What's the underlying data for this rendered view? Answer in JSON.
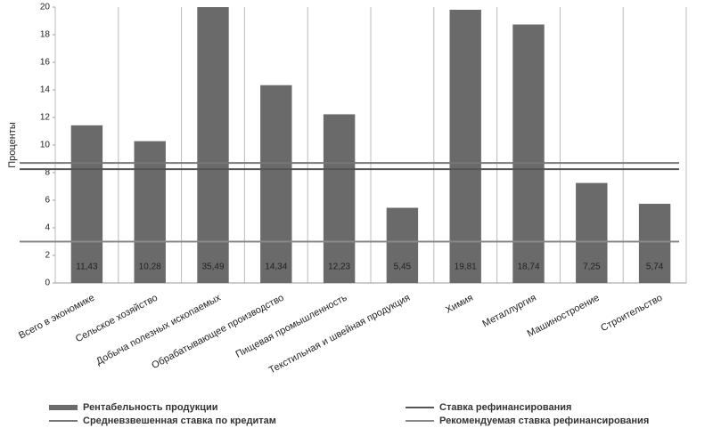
{
  "chart_data": {
    "type": "bar",
    "y_label": "Проценты",
    "categories": [
      "Всего в экономике",
      "Сельское хозяйство",
      "Добыча полезных ископаемых",
      "Обрабатывающее производство",
      "Пищевая промышленность",
      "Текстильная и швейная продукция",
      "Химия",
      "Металлургия",
      "Машиностроение",
      "Строительство"
    ],
    "series": [
      {
        "name": "Рентабельность продукции",
        "color": "#6a6a6a",
        "values": [
          11.43,
          10.28,
          35.49,
          14.34,
          12.23,
          5.45,
          19.81,
          18.74,
          7.25,
          5.74
        ],
        "value_labels": [
          "11,43",
          "10,28",
          "35,49",
          "14,34",
          "12,23",
          "5,45",
          "19,81",
          "18,74",
          "7,25",
          "5,74"
        ]
      }
    ],
    "lines": [
      {
        "name": "Ставка рефинансирования",
        "value": 8.25,
        "color": "#555555"
      },
      {
        "name": "Средневзвешенная ставка по кредитам",
        "value": 8.7,
        "color": "#777777"
      },
      {
        "name": "Рекомендуемая ставка рефинансирования",
        "value": 3,
        "color": "#888888"
      }
    ],
    "ylim": [
      0,
      20
    ],
    "yticks": [
      0,
      2,
      4,
      6,
      8,
      10,
      12,
      14,
      16,
      18,
      20
    ],
    "grid": true
  }
}
